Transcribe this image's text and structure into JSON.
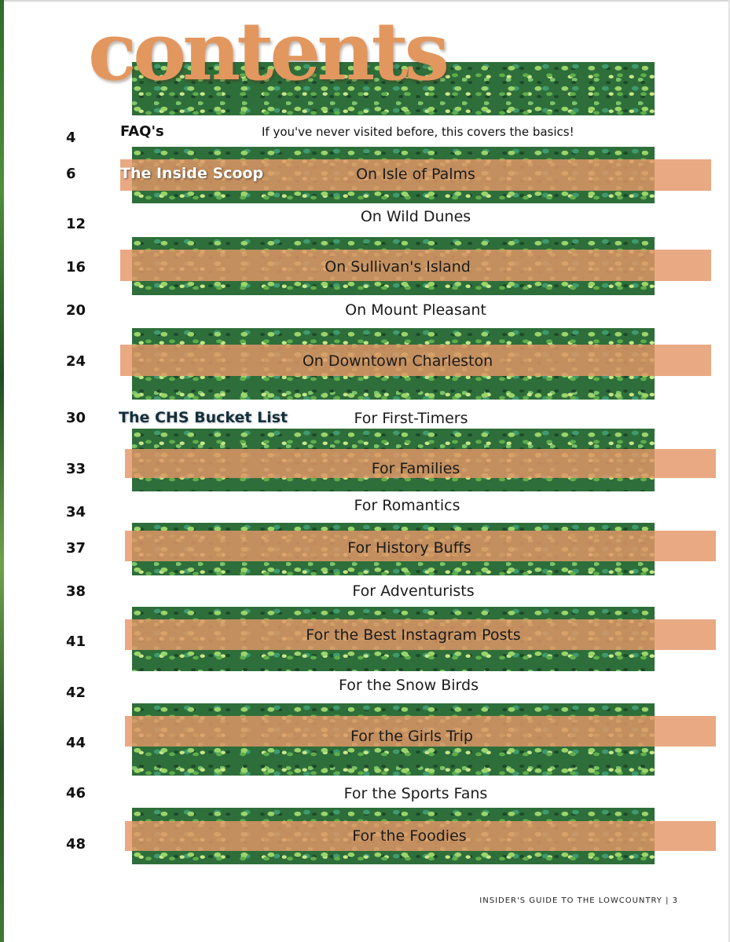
{
  "title": "contents",
  "footer": "INSIDER'S GUIDE TO THE LOWCOUNTRY | 3",
  "faq": {
    "page": "4",
    "label": "FAQ's",
    "description": "If you've never visited before, this covers the basics!"
  },
  "sections": [
    {
      "label": "The Inside Scoop",
      "entries": [
        {
          "page": "6",
          "label": "On Isle of Palms"
        },
        {
          "page": "12",
          "label": "On Wild Dunes"
        },
        {
          "page": "16",
          "label": "On Sullivan's Island"
        },
        {
          "page": "20",
          "label": "On Mount Pleasant"
        },
        {
          "page": "24",
          "label": "On Downtown Charleston"
        }
      ]
    },
    {
      "label": "The CHS Bucket List",
      "entries": [
        {
          "page": "30",
          "label": "For First-Timers"
        },
        {
          "page": "33",
          "label": "For Families"
        },
        {
          "page": "34",
          "label": "For Romantics"
        },
        {
          "page": "37",
          "label": "For History Buffs"
        },
        {
          "page": "38",
          "label": "For Adventurists"
        },
        {
          "page": "41",
          "label": "For the Best Instagram Posts"
        },
        {
          "page": "42",
          "label": "For the Snow Birds"
        },
        {
          "page": "44",
          "label": "For the Girls Trip"
        },
        {
          "page": "46",
          "label": "For the Sports Fans"
        },
        {
          "page": "48",
          "label": "For the Foodies"
        }
      ]
    }
  ]
}
